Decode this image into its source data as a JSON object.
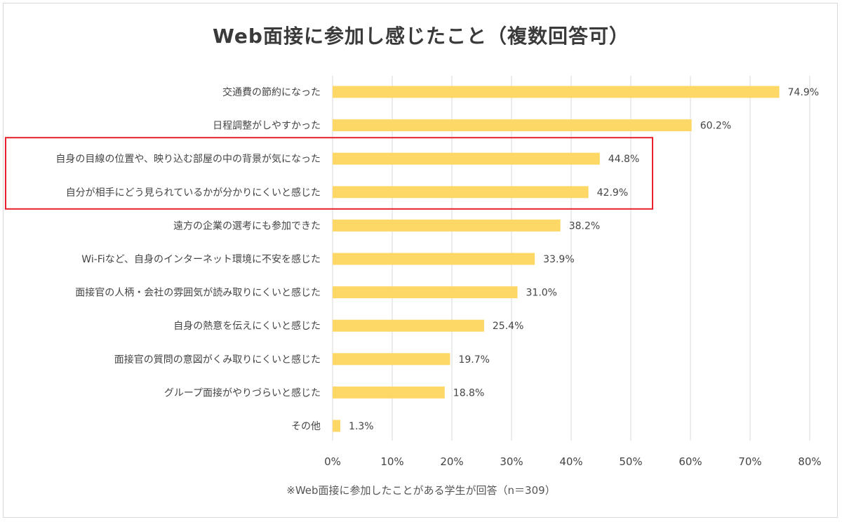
{
  "chart_data": {
    "type": "bar",
    "orientation": "horizontal",
    "title": "Web面接に参加し感じたこと（複数回答可）",
    "categories": [
      "交通費の節約になった",
      "日程調整がしやすかった",
      "自身の目線の位置や、映り込む部屋の中の背景が気になった",
      "自分が相手にどう見られているかが分かりにくいと感じた",
      "遠方の企業の選考にも参加できた",
      "Wi-Fiなど、自身のインターネット環境に不安を感じた",
      "面接官の人柄・会社の雰囲気が読み取りにくいと感じた",
      "自身の熱意を伝えにくいと感じた",
      "面接官の質問の意図がくみ取りにくいと感じた",
      "グループ面接がやりづらいと感じた",
      "その他"
    ],
    "values": [
      74.9,
      60.2,
      44.8,
      42.9,
      38.2,
      33.9,
      31.0,
      25.4,
      19.7,
      18.8,
      1.3
    ],
    "value_labels": [
      "74.9%",
      "60.2%",
      "44.8%",
      "42.9%",
      "38.2%",
      "33.9%",
      "31.0%",
      "25.4%",
      "19.7%",
      "18.8%",
      "1.3%"
    ],
    "xlim": [
      0,
      80
    ],
    "x_ticks": [
      "0%",
      "10%",
      "20%",
      "30%",
      "40%",
      "50%",
      "60%",
      "70%",
      "80%"
    ],
    "grid": true,
    "highlighted_categories": [
      2,
      3
    ],
    "footnote": "※Web面接に参加したことがある学生が回答（n＝309）",
    "colors": {
      "bar": "#FDD867",
      "highlight_box": "#E8212A",
      "grid": "#d9d9d9"
    }
  }
}
